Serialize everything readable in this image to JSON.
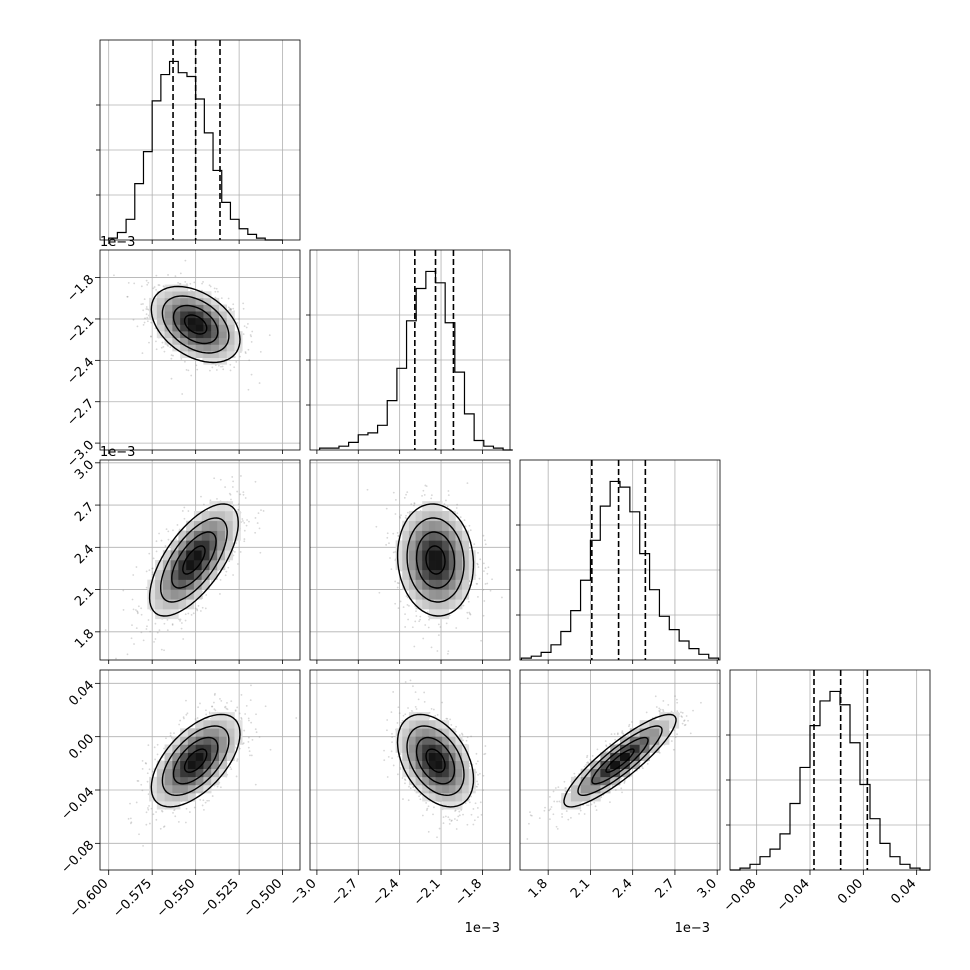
{
  "chart_data": {
    "type": "corner",
    "title": "",
    "parameters": [
      {
        "name": "",
        "unit_offset": "",
        "tick_values": [
          -0.6,
          -0.575,
          -0.55,
          -0.525,
          -0.5
        ],
        "tick_labels": [
          "−0.600",
          "−0.575",
          "−0.550",
          "−0.525",
          "−0.500"
        ],
        "range": [
          -0.605,
          -0.49
        ],
        "quantiles": [
          -0.563,
          -0.55,
          -0.536
        ]
      },
      {
        "name": "",
        "unit_offset": "1e−3",
        "tick_values": [
          -3.0,
          -2.7,
          -2.4,
          -2.1,
          -1.8
        ],
        "tick_labels": [
          "−3.0",
          "−2.7",
          "−2.4",
          "−2.1",
          "−1.8"
        ],
        "range": [
          -3.05,
          -1.6
        ],
        "quantiles": [
          -2.29,
          -2.14,
          -2.01
        ]
      },
      {
        "name": "",
        "unit_offset": "1e−3",
        "tick_values": [
          1.8,
          2.1,
          2.4,
          2.7,
          3.0
        ],
        "tick_labels": [
          "1.8",
          "2.1",
          "2.4",
          "2.7",
          "3.0"
        ],
        "range": [
          1.6,
          3.02
        ],
        "quantiles": [
          2.11,
          2.3,
          2.49
        ]
      },
      {
        "name": "",
        "unit_offset": "",
        "tick_values": [
          -0.08,
          -0.04,
          0.0,
          0.04
        ],
        "tick_labels": [
          "−0.08",
          "−0.04",
          "0.00",
          "0.04"
        ],
        "range": [
          -0.1,
          0.05
        ],
        "quantiles": [
          -0.037,
          -0.017,
          0.003
        ]
      }
    ],
    "histograms": [
      {
        "param": 0,
        "bins": [
          -0.6,
          -0.595,
          -0.59,
          -0.585,
          -0.58,
          -0.575,
          -0.57,
          -0.565,
          -0.56,
          -0.555,
          -0.55,
          -0.545,
          -0.54,
          -0.535,
          -0.53,
          -0.525,
          -0.52,
          -0.515,
          -0.51,
          -0.505,
          -0.5
        ],
        "counts": [
          1,
          4,
          11,
          30,
          47,
          74,
          88,
          95,
          89,
          87,
          75,
          57,
          37,
          20,
          11,
          6,
          3,
          1,
          0,
          0
        ]
      },
      {
        "param": 1,
        "bins": [
          -2.98,
          -2.91,
          -2.84,
          -2.77,
          -2.7,
          -2.63,
          -2.56,
          -2.49,
          -2.42,
          -2.35,
          -2.28,
          -2.21,
          -2.14,
          -2.07,
          -2.0,
          -1.93,
          -1.86,
          -1.79,
          -1.72,
          -1.65,
          -1.58
        ],
        "counts": [
          1,
          1,
          2,
          4,
          8,
          9,
          13,
          26,
          43,
          68,
          85,
          94,
          88,
          67,
          41,
          19,
          5,
          2,
          1,
          0
        ]
      },
      {
        "param": 2,
        "bins": [
          1.61,
          1.68,
          1.75,
          1.82,
          1.89,
          1.96,
          2.03,
          2.1,
          2.17,
          2.24,
          2.31,
          2.38,
          2.45,
          2.52,
          2.59,
          2.66,
          2.73,
          2.8,
          2.87,
          2.94,
          3.01
        ],
        "counts": [
          1,
          2,
          4,
          8,
          15,
          26,
          42,
          63,
          81,
          94,
          91,
          78,
          56,
          37,
          23,
          16,
          10,
          6,
          3,
          1
        ]
      },
      {
        "param": 3,
        "bins": [
          -0.1,
          -0.0925,
          -0.085,
          -0.0775,
          -0.07,
          -0.0625,
          -0.055,
          -0.0475,
          -0.04,
          -0.0325,
          -0.025,
          -0.0175,
          -0.01,
          -0.0025,
          0.005,
          0.0125,
          0.02,
          0.0275,
          0.035,
          0.0425,
          0.05
        ],
        "counts": [
          0,
          1,
          3,
          7,
          11,
          19,
          35,
          54,
          76,
          89,
          94,
          87,
          67,
          45,
          27,
          14,
          7,
          3,
          1,
          0
        ]
      }
    ],
    "pairs": [
      {
        "x_param": 0,
        "y_param": 1,
        "mean": [
          -0.55,
          -2.14
        ],
        "std": [
          0.0125,
          0.135
        ],
        "corr": -0.4
      },
      {
        "x_param": 0,
        "y_param": 2,
        "mean": [
          -0.551,
          2.31
        ],
        "std": [
          0.0125,
          0.195
        ],
        "corr": 0.66
      },
      {
        "x_param": 1,
        "y_param": 2,
        "mean": [
          -2.14,
          2.31
        ],
        "std": [
          0.135,
          0.195
        ],
        "corr": -0.08
      },
      {
        "x_param": 0,
        "y_param": 3,
        "mean": [
          -0.55,
          -0.018
        ],
        "std": [
          0.0125,
          0.017
        ],
        "corr": 0.58
      },
      {
        "x_param": 1,
        "y_param": 3,
        "mean": [
          -2.14,
          -0.018
        ],
        "std": [
          0.135,
          0.017
        ],
        "corr": -0.4
      },
      {
        "x_param": 2,
        "y_param": 3,
        "mean": [
          2.31,
          -0.018
        ],
        "std": [
          0.195,
          0.017
        ],
        "corr": 0.88
      }
    ],
    "contour_levels_sigma": [
      0.5,
      1.0,
      1.5,
      2.0
    ],
    "grid": true,
    "colors": {
      "hist": "#000000",
      "points": "#8c8c8c",
      "contour": "#000000",
      "grid": "#b0b0b0"
    }
  }
}
